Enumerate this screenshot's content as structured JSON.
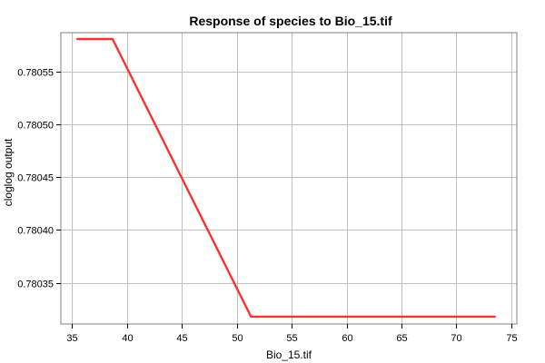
{
  "chart_data": {
    "type": "line",
    "title": "Response of species to Bio_15.tif",
    "xlabel": "Bio_15.tif",
    "ylabel": "cloglog output",
    "xlim": [
      34.0,
      75.5
    ],
    "ylim": [
      0.780311,
      0.780587
    ],
    "x_ticks": [
      35,
      40,
      45,
      50,
      55,
      60,
      65,
      70,
      75
    ],
    "y_ticks": [
      0.78035,
      0.7804,
      0.78045,
      0.7805,
      0.78055
    ],
    "x_tick_labels": [
      "35",
      "40",
      "45",
      "50",
      "55",
      "60",
      "65",
      "70",
      "75"
    ],
    "y_tick_labels": [
      "0.78035",
      "0.78040",
      "0.78045",
      "0.78050",
      "0.78055"
    ],
    "grid": true,
    "series": [
      {
        "color": "#ff3030",
        "x": [
          35.5,
          38.7,
          51.3,
          73.5
        ],
        "y": [
          0.780581,
          0.780581,
          0.780318,
          0.780318
        ]
      }
    ]
  }
}
